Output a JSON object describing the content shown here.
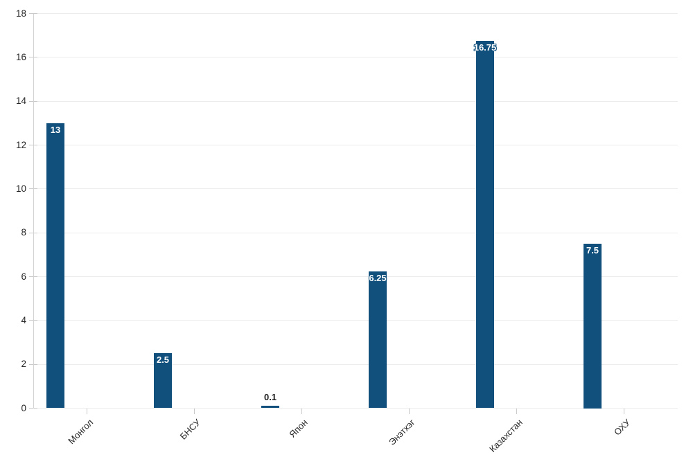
{
  "chart_data": {
    "type": "bar",
    "title": "",
    "xlabel": "",
    "ylabel": "",
    "categories": [
      "Монгол",
      "БНСУ",
      "Япон",
      "Энэтхэг",
      "Казахстан",
      "ОХУ"
    ],
    "values": [
      13,
      2.5,
      0.1,
      6.25,
      16.75,
      7.5
    ],
    "value_labels": [
      "13",
      "2.5",
      "0.1",
      "6.25",
      "16.75",
      "7.5"
    ],
    "ylim": [
      0,
      18
    ],
    "yticks": [
      0,
      2,
      4,
      6,
      8,
      10,
      12,
      14,
      16,
      18
    ],
    "grid": true,
    "legend": "none",
    "colors": {
      "bar": "#11507d",
      "value_label_inside": "#ffffff",
      "value_label_outside": "#1a1a1a",
      "gridline": "#ececec",
      "axis": "#d2d2d2",
      "tick": "#c9c9c9",
      "tick_label": "#262626",
      "background": "#ffffff"
    }
  }
}
